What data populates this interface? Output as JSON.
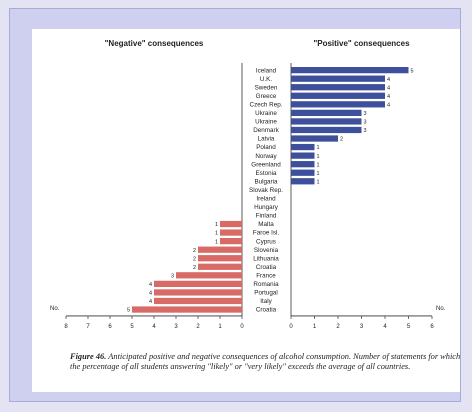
{
  "colors": {
    "positive_bar": "#3e4f9c",
    "negative_bar": "#d96b66",
    "axis": "#333333",
    "text": "#222222",
    "panel_background": "#ffffff",
    "frame_background": "#cfd0ef"
  },
  "caption": {
    "figure_label": "Figure 46.",
    "text": "Anticipated positive and negative consequences of alcohol consumption. Number of statements for which the percentage of all students answering \"likely\" or \"very likely\" exceeds the average of all countries."
  },
  "chart_data": [
    {
      "type": "bar",
      "orientation": "horizontal",
      "title": "\"Negative\" consequences",
      "xlabel": "No.",
      "xlim": [
        8,
        0
      ],
      "xticks": [
        "8",
        "7",
        "6",
        "5",
        "4",
        "3",
        "2",
        "1",
        "0"
      ],
      "categories": [
        "Iceland",
        "U.K.",
        "Sweden",
        "Greece",
        "Czech Rep.",
        "Ukraine",
        "Ukraine",
        "Denmark",
        "Latvia",
        "Poland",
        "Norway",
        "Greenland",
        "Estonia",
        "Bulgaria",
        "Slovak Rep.",
        "Ireland",
        "Hungary",
        "Finland",
        "Malta",
        "Faroe Isl.",
        "Cyprus",
        "Slovenia",
        "Lithuania",
        "Croatia",
        "France",
        "Romania",
        "Portugal",
        "Italy",
        "Croatia"
      ],
      "values": [
        0,
        0,
        0,
        0,
        0,
        0,
        0,
        0,
        0,
        0,
        0,
        0,
        0,
        0,
        0,
        0,
        0,
        0,
        1,
        1,
        1,
        2,
        2,
        2,
        3,
        4,
        4,
        4,
        5
      ],
      "bar_labels": [
        "",
        "",
        "",
        "",
        "",
        "",
        "",
        "",
        "",
        "",
        "",
        "",
        "",
        "",
        "",
        "",
        "",
        "",
        "1",
        "1",
        "1",
        "2",
        "2",
        "2",
        "3",
        "4",
        "4",
        "4",
        "5"
      ],
      "color": "#d96b66"
    },
    {
      "type": "bar",
      "orientation": "horizontal",
      "title": "\"Positive\" consequences",
      "xlabel": "No.",
      "xlim": [
        0,
        6
      ],
      "xticks": [
        "0",
        "1",
        "2",
        "3",
        "4",
        "5",
        "6"
      ],
      "categories": [
        "Iceland",
        "U.K.",
        "Sweden",
        "Greece",
        "Czech Rep.",
        "Ukraine",
        "Ukraine",
        "Denmark",
        "Latvia",
        "Poland",
        "Norway",
        "Greenland",
        "Estonia",
        "Bulgaria",
        "Slovak Rep.",
        "Ireland",
        "Hungary",
        "Finland",
        "Malta",
        "Faroe Isl.",
        "Cyprus",
        "Slovenia",
        "Lithuania",
        "Croatia",
        "France",
        "Romania",
        "Portugal",
        "Italy",
        "Croatia"
      ],
      "values": [
        5,
        4,
        4,
        4,
        4,
        3,
        3,
        3,
        2,
        1,
        1,
        1,
        1,
        1,
        0,
        0,
        0,
        0,
        0,
        0,
        0,
        0,
        0,
        0,
        0,
        0,
        0,
        0,
        0
      ],
      "bar_labels": [
        "5",
        "4",
        "4",
        "4",
        "4",
        "3",
        "3",
        "3",
        "2",
        "1",
        "1",
        "1",
        "1",
        "1",
        "",
        "",
        "",
        "",
        "",
        "",
        "",
        "",
        "",
        "",
        "",
        "",
        "",
        "",
        ""
      ],
      "color": "#3e4f9c"
    }
  ]
}
